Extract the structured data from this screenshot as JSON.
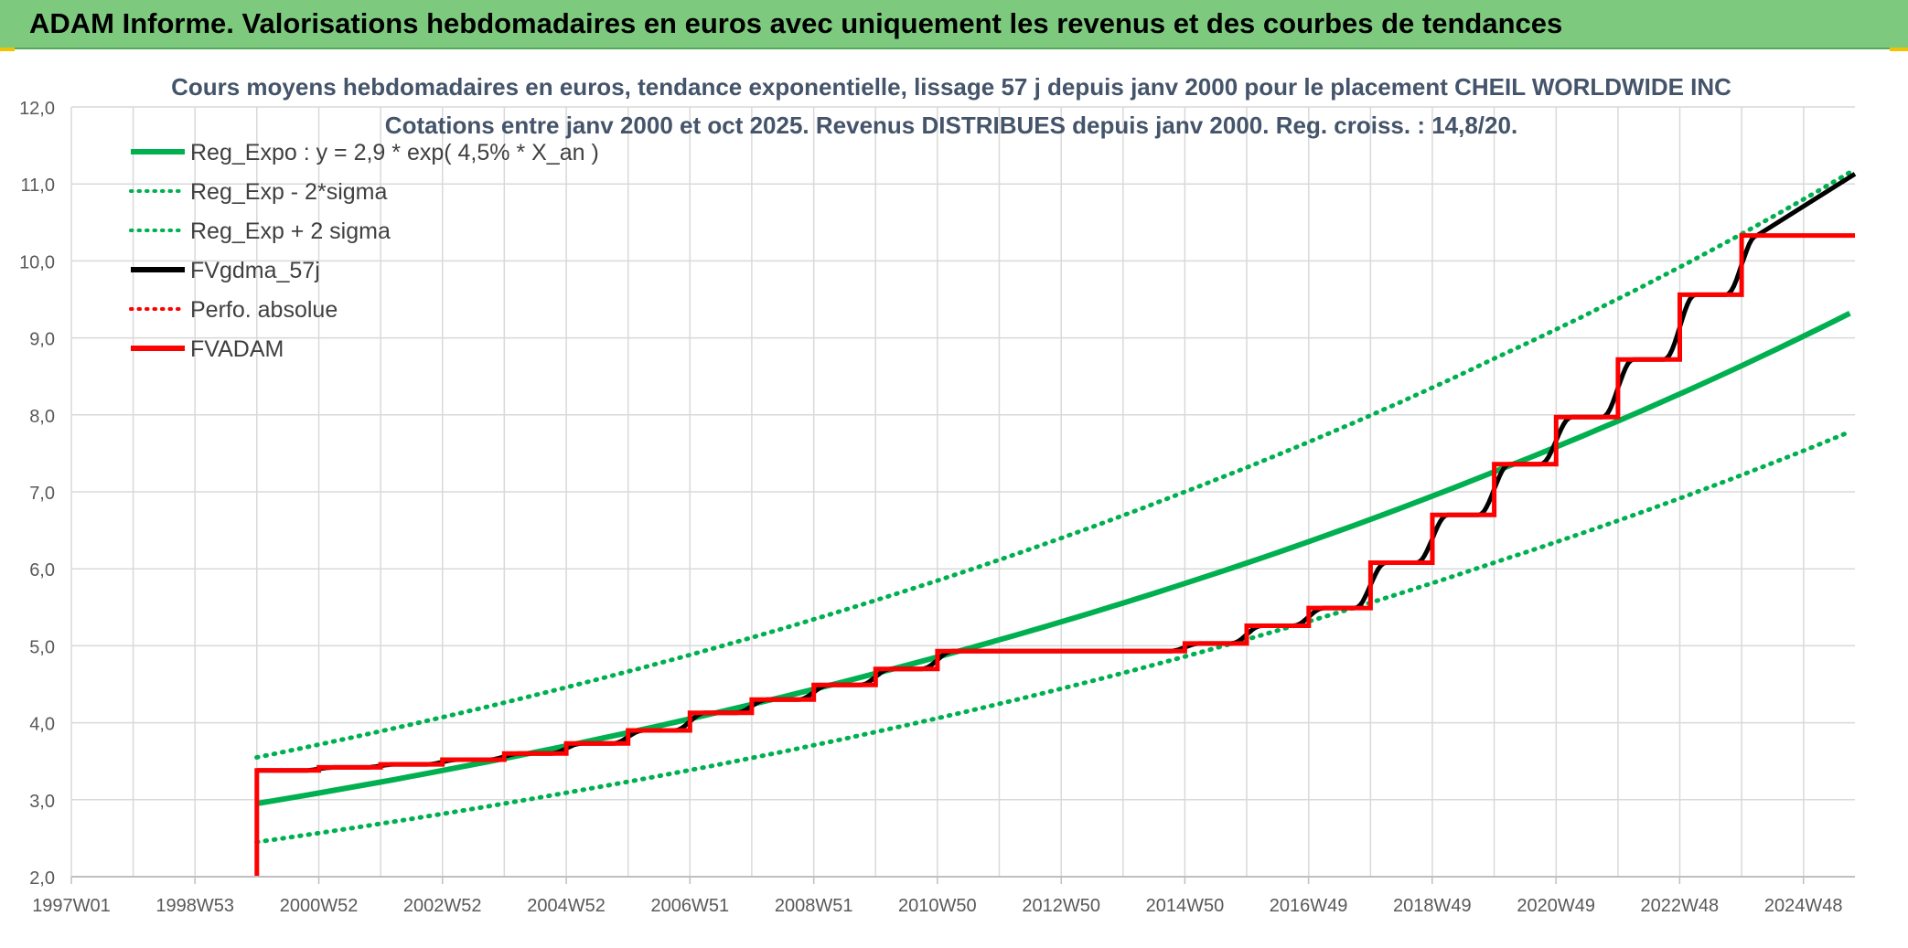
{
  "header": {
    "title": "ADAM Informe. Valorisations hebdomadaires en euros avec uniquement les revenus et des courbes de tendances"
  },
  "colors": {
    "header_bg": "#7dc97e",
    "green": "#00b050",
    "black": "#000000",
    "red": "#ff0000",
    "grid": "#d9d9d9"
  },
  "chart_data": {
    "type": "line",
    "title": "Cours moyens hebdomadaires en euros, tendance exponentielle, lissage 57 j depuis janv 2000 pour le placement CHEIL WORLDWIDE INC",
    "subtitle": "Cotations entre janv 2000 et oct 2025. Revenus DISTRIBUES depuis janv 2000. Reg. croiss. : 14,8/20.",
    "x_axis": {
      "type": "date",
      "start": "1997-01-01",
      "end": "2025-10-31",
      "tick_labels": [
        "1997W01",
        "1998W53",
        "2000W52",
        "2002W52",
        "2004W52",
        "2006W51",
        "2008W51",
        "2010W50",
        "2012W50",
        "2014W50",
        "2016W49",
        "2018W49",
        "2020W49",
        "2022W48",
        "2024W48"
      ],
      "tick_dates": [
        "1997-01-01",
        "1999-01-01",
        "2001-01-01",
        "2003-01-01",
        "2005-01-01",
        "2007-01-01",
        "2009-01-01",
        "2011-01-01",
        "2013-01-01",
        "2015-01-01",
        "2016-12-31",
        "2018-12-31",
        "2020-12-31",
        "2022-12-31",
        "2024-12-31"
      ]
    },
    "y_axis": {
      "min": 2.0,
      "max": 12.0,
      "step": 1.0,
      "tick_labels": [
        "2,0",
        "3,0",
        "4,0",
        "5,0",
        "6,0",
        "7,0",
        "8,0",
        "9,0",
        "10,0",
        "11,0",
        "12,0"
      ]
    },
    "grid": true,
    "legend": {
      "position": "top-left",
      "entries": [
        {
          "name": "Reg_Expo : y = 2,9 * exp( 4,5% *  X_an )",
          "color": "#00b050",
          "style": "solid"
        },
        {
          "name": "Reg_Exp - 2*sigma",
          "color": "#00b050",
          "style": "dotted"
        },
        {
          "name": "Reg_Exp + 2 sigma",
          "color": "#00b050",
          "style": "dotted"
        },
        {
          "name": "FVgdma_57j",
          "color": "#000000",
          "style": "solid"
        },
        {
          "name": "Perfo. absolue",
          "color": "#ff0000",
          "style": "dotted"
        },
        {
          "name": "FVADAM",
          "color": "#ff0000",
          "style": "solid"
        }
      ]
    },
    "series": [
      {
        "name": "Reg_Expo : y = 2,9 * exp( 4,5% *  X_an )",
        "color": "#00b050",
        "style": "solid",
        "x": [
          "2000-01-01",
          "2005-01-01",
          "2010-01-01",
          "2015-01-01",
          "2020-01-01",
          "2025-10-01"
        ],
        "values": [
          2.95,
          3.7,
          4.64,
          5.81,
          7.26,
          9.32
        ]
      },
      {
        "name": "Reg_Exp - 2*sigma",
        "color": "#00b050",
        "style": "dotted",
        "x": [
          "2000-01-01",
          "2005-01-01",
          "2010-01-01",
          "2015-01-01",
          "2020-01-01",
          "2025-10-01"
        ],
        "values": [
          2.45,
          3.09,
          3.88,
          4.86,
          6.08,
          7.78
        ]
      },
      {
        "name": "Reg_Exp + 2 sigma",
        "color": "#00b050",
        "style": "dotted",
        "x": [
          "2000-01-01",
          "2005-01-01",
          "2010-01-01",
          "2015-01-01",
          "2020-01-01",
          "2025-10-01"
        ],
        "values": [
          3.55,
          4.46,
          5.59,
          7.0,
          8.73,
          11.15
        ]
      },
      {
        "name": "FVADAM",
        "color": "#ff0000",
        "style": "step",
        "x": [
          "2000-01-01",
          "2001-01-01",
          "2002-01-01",
          "2003-01-01",
          "2004-01-01",
          "2005-01-01",
          "2006-01-01",
          "2007-01-01",
          "2008-01-01",
          "2009-01-01",
          "2010-01-01",
          "2011-01-01",
          "2015-01-01",
          "2016-01-01",
          "2017-01-01",
          "2018-01-01",
          "2019-01-01",
          "2020-01-01",
          "2021-01-01",
          "2022-01-01",
          "2023-01-01",
          "2024-01-01",
          "2025-10-31"
        ],
        "values": [
          3.38,
          3.42,
          3.46,
          3.52,
          3.6,
          3.73,
          3.9,
          4.13,
          4.3,
          4.49,
          4.7,
          4.93,
          5.03,
          5.26,
          5.49,
          6.08,
          6.7,
          7.36,
          7.97,
          8.72,
          9.56,
          10.33,
          11.13
        ]
      }
    ]
  }
}
